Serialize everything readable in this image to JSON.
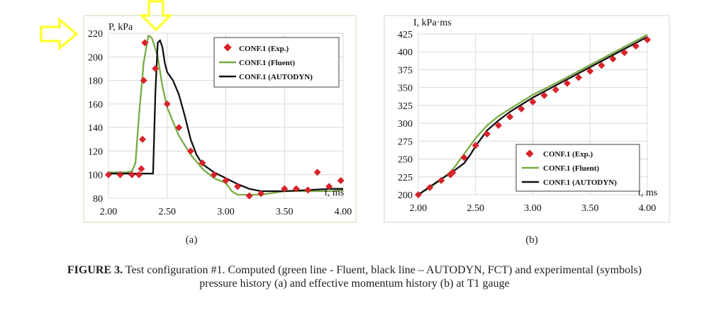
{
  "caption": {
    "label": "FIGURE 3.",
    "text": "Test configuration #1. Computed (green line - Fluent, black line – AUTODYN, FCT) and experimental (symbols)",
    "text2": "pressure history (a) and effective momentum history (b) at T1 gauge"
  },
  "annotations": [
    {
      "name": "arrow-right-icon",
      "color": "#ffff33"
    },
    {
      "name": "arrow-down-icon",
      "color": "#ffff33"
    }
  ],
  "colors": {
    "exp": "#d7232b",
    "fluent": "#77ac44",
    "autodyn": "#111111",
    "grid": "#d9d9d9",
    "frame": "#c9dcb6"
  },
  "chart_data": [
    {
      "type": "line",
      "panel_label": "(a)",
      "ylabel": "P, kPa",
      "xlabel": "t, ms",
      "xlim": [
        2.0,
        4.0
      ],
      "ylim": [
        80,
        220
      ],
      "xticks": [
        "2.00",
        "2.50",
        "3.00",
        "3.50",
        "4.00"
      ],
      "yticks": [
        "80",
        "100",
        "120",
        "140",
        "160",
        "180",
        "200",
        "220"
      ],
      "legend_position": "top-right",
      "series": [
        {
          "name": "CONF.1 (Exp.)",
          "kind": "markers",
          "color": "#d7232b",
          "x": [
            2.0,
            2.1,
            2.2,
            2.26,
            2.28,
            2.29,
            2.3,
            2.31,
            2.4,
            2.5,
            2.6,
            2.7,
            2.8,
            2.9,
            3.0,
            3.1,
            3.2,
            3.3,
            3.5,
            3.6,
            3.7,
            3.78,
            3.88,
            3.98
          ],
          "y": [
            100,
            100,
            100,
            100,
            105,
            130,
            180,
            212,
            190,
            160,
            140,
            120,
            110,
            100,
            95,
            90,
            82,
            84,
            88,
            88,
            87,
            102,
            90,
            95
          ]
        },
        {
          "name": "CONF.1 (Fluent)",
          "kind": "line",
          "color": "#77ac44",
          "x": [
            2.0,
            2.15,
            2.2,
            2.23,
            2.26,
            2.3,
            2.34,
            2.37,
            2.39,
            2.42,
            2.46,
            2.5,
            2.55,
            2.6,
            2.7,
            2.8,
            2.9,
            3.0,
            3.05,
            3.1,
            3.3,
            3.5,
            3.7,
            3.9,
            4.0
          ],
          "y": [
            102,
            102,
            103,
            110,
            150,
            195,
            218,
            216,
            210,
            200,
            175,
            157,
            145,
            133,
            117,
            105,
            97,
            93,
            86,
            83,
            83,
            86,
            86,
            86,
            87
          ]
        },
        {
          "name": "CONF.1 (AUTODYN)",
          "kind": "line",
          "color": "#111111",
          "x": [
            2.0,
            2.3,
            2.38,
            2.4,
            2.42,
            2.44,
            2.46,
            2.48,
            2.5,
            2.55,
            2.6,
            2.65,
            2.7,
            2.75,
            2.8,
            2.9,
            3.0,
            3.1,
            3.2,
            3.3,
            3.5,
            3.7,
            3.9,
            4.0
          ],
          "y": [
            101,
            101,
            101,
            170,
            212,
            214,
            208,
            195,
            187,
            180,
            168,
            150,
            130,
            117,
            109,
            102,
            97,
            92,
            88,
            86,
            86,
            87,
            88,
            88
          ]
        }
      ]
    },
    {
      "type": "line",
      "panel_label": "(b)",
      "ylabel": "I, kPa·ms",
      "xlabel": "t, ms",
      "xlim": [
        2.0,
        4.0
      ],
      "ylim": [
        200,
        425
      ],
      "xticks": [
        "2.00",
        "2.50",
        "3.00",
        "3.50",
        "4.00"
      ],
      "yticks": [
        "200",
        "225",
        "250",
        "275",
        "300",
        "325",
        "350",
        "375",
        "400",
        "425"
      ],
      "legend_position": "bottom-right",
      "series": [
        {
          "name": "CONF.1 (Exp.)",
          "kind": "markers",
          "color": "#d7232b",
          "x": [
            2.0,
            2.1,
            2.2,
            2.28,
            2.3,
            2.4,
            2.5,
            2.6,
            2.7,
            2.8,
            2.9,
            3.0,
            3.1,
            3.2,
            3.3,
            3.4,
            3.5,
            3.6,
            3.7,
            3.8,
            3.9,
            4.0
          ],
          "y": [
            200,
            210,
            220,
            228,
            231,
            252,
            269,
            285,
            297,
            309,
            320,
            330,
            339,
            347,
            356,
            364,
            373,
            381,
            390,
            399,
            408,
            417
          ]
        },
        {
          "name": "CONF.1 (Fluent)",
          "kind": "line",
          "color": "#77ac44",
          "x": [
            2.0,
            2.1,
            2.2,
            2.3,
            2.4,
            2.5,
            2.6,
            2.7,
            2.8,
            2.9,
            3.0,
            3.2,
            3.4,
            3.6,
            3.8,
            4.0
          ],
          "y": [
            200,
            210,
            221,
            235,
            257,
            279,
            297,
            310,
            320,
            330,
            340,
            356,
            373,
            390,
            407,
            424
          ]
        },
        {
          "name": "CONF.1 (AUTODYN)",
          "kind": "line",
          "color": "#111111",
          "x": [
            2.0,
            2.1,
            2.2,
            2.3,
            2.4,
            2.45,
            2.5,
            2.6,
            2.7,
            2.8,
            2.9,
            3.0,
            3.2,
            3.4,
            3.6,
            3.8,
            4.0
          ],
          "y": [
            200,
            211,
            222,
            232,
            244,
            255,
            268,
            290,
            304,
            316,
            326,
            336,
            353,
            370,
            387,
            404,
            421
          ]
        }
      ]
    }
  ]
}
